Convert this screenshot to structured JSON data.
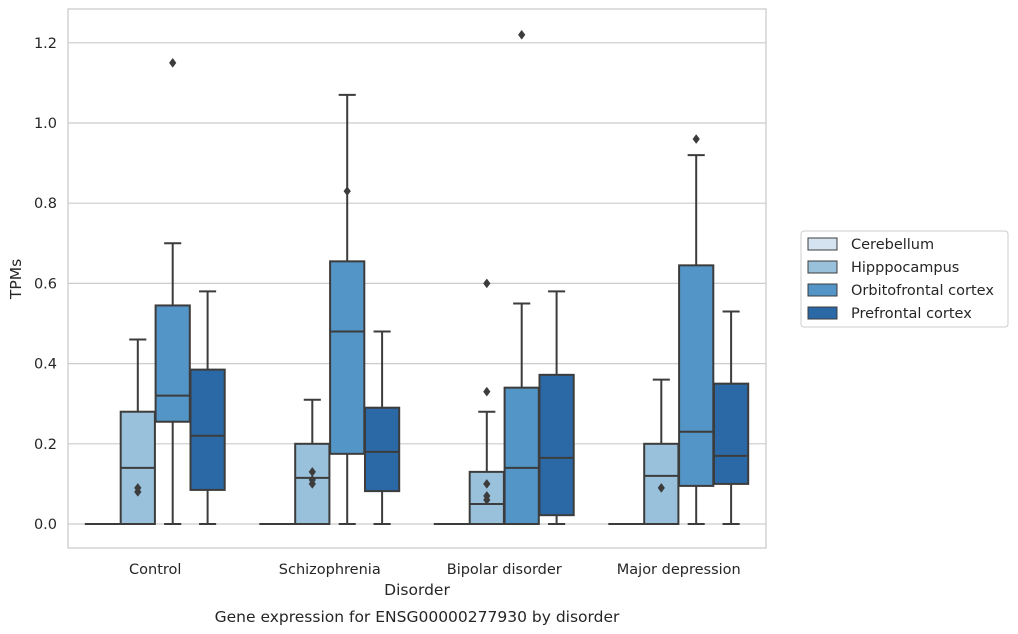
{
  "chart_data": {
    "type": "box",
    "title": "Gene expression for ENSG00000277930 by disorder",
    "xlabel": "Disorder",
    "ylabel": "TPMs",
    "ylim": [
      -0.06,
      1.28
    ],
    "yticks": [
      0.0,
      0.2,
      0.4,
      0.6,
      0.8,
      1.0,
      1.2
    ],
    "ytick_labels": [
      "0.0",
      "0.2",
      "0.4",
      "0.6",
      "0.8",
      "1.0",
      "1.2"
    ],
    "grid": "horizontal",
    "legend_position": "outside-right",
    "categories": [
      "Control",
      "Schizophrenia",
      "Bipolar disorder",
      "Major depression"
    ],
    "series": [
      {
        "name": "Cerebellum",
        "color": "#d5e3f1",
        "boxes": [
          {
            "whislo": 0,
            "q1": 0,
            "med": 0,
            "q3": 0,
            "whishi": 0,
            "fliers": []
          },
          {
            "whislo": 0,
            "q1": 0,
            "med": 0,
            "q3": 0,
            "whishi": 0,
            "fliers": []
          },
          {
            "whislo": 0,
            "q1": 0,
            "med": 0,
            "q3": 0,
            "whishi": 0,
            "fliers": []
          },
          {
            "whislo": 0,
            "q1": 0,
            "med": 0,
            "q3": 0,
            "whishi": 0,
            "fliers": []
          }
        ]
      },
      {
        "name": "Hipppocampus",
        "color": "#99c1db",
        "boxes": [
          {
            "whislo": 0,
            "q1": 0,
            "med": 0.14,
            "q3": 0.28,
            "whishi": 0.46,
            "fliers": [
              0.08,
              0.09
            ]
          },
          {
            "whislo": 0,
            "q1": 0,
            "med": 0.115,
            "q3": 0.2,
            "whishi": 0.31,
            "fliers": [
              0.1,
              0.11,
              0.13
            ]
          },
          {
            "whislo": 0,
            "q1": 0,
            "med": 0.05,
            "q3": 0.13,
            "whishi": 0.28,
            "fliers": [
              0.06,
              0.07,
              0.1,
              0.33,
              0.6
            ]
          },
          {
            "whislo": 0,
            "q1": 0,
            "med": 0.12,
            "q3": 0.2,
            "whishi": 0.36,
            "fliers": [
              0.09
            ]
          }
        ]
      },
      {
        "name": "Orbitofrontal cortex",
        "color": "#5295c6",
        "boxes": [
          {
            "whislo": 0,
            "q1": 0.255,
            "med": 0.32,
            "q3": 0.545,
            "whishi": 0.7,
            "fliers": [
              1.15
            ]
          },
          {
            "whislo": 0,
            "q1": 0.175,
            "med": 0.48,
            "q3": 0.655,
            "whishi": 1.07,
            "fliers": [
              0.83
            ]
          },
          {
            "whislo": 0,
            "q1": 0,
            "med": 0.14,
            "q3": 0.34,
            "whishi": 0.55,
            "fliers": [
              1.22
            ]
          },
          {
            "whislo": 0,
            "q1": 0.095,
            "med": 0.23,
            "q3": 0.645,
            "whishi": 0.92,
            "fliers": [
              0.96
            ]
          }
        ]
      },
      {
        "name": "Prefrontal cortex",
        "color": "#2b69a6",
        "boxes": [
          {
            "whislo": 0,
            "q1": 0.085,
            "med": 0.22,
            "q3": 0.385,
            "whishi": 0.58,
            "fliers": []
          },
          {
            "whislo": 0,
            "q1": 0.082,
            "med": 0.18,
            "q3": 0.29,
            "whishi": 0.48,
            "fliers": []
          },
          {
            "whislo": 0,
            "q1": 0.022,
            "med": 0.165,
            "q3": 0.372,
            "whishi": 0.58,
            "fliers": []
          },
          {
            "whislo": 0,
            "q1": 0.1,
            "med": 0.17,
            "q3": 0.35,
            "whishi": 0.53,
            "fliers": []
          }
        ]
      }
    ],
    "colors": {
      "line": "#3c3c3c",
      "grid": "#cccccc",
      "frame": "#cccccc"
    }
  }
}
